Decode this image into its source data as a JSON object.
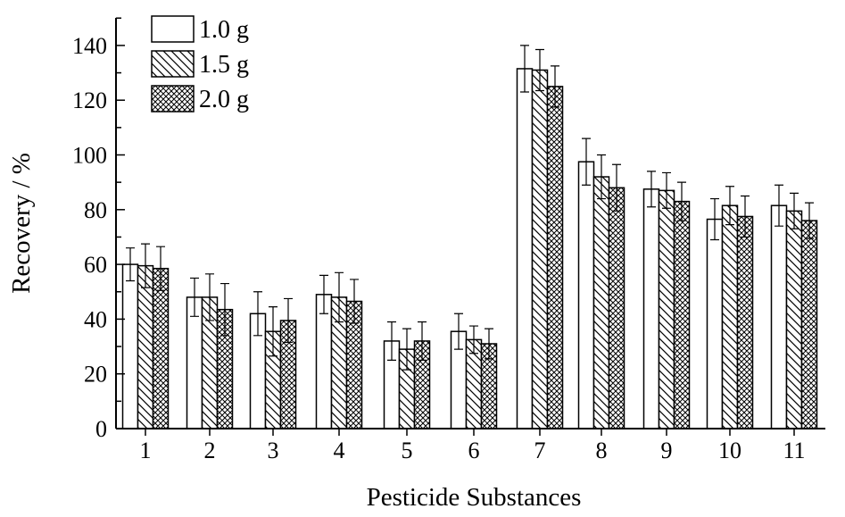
{
  "chart_data": {
    "type": "bar",
    "xlabel": "Pesticide Substances",
    "ylabel": "Recovery / %",
    "ylim": [
      0,
      150
    ],
    "yticks": [
      0,
      20,
      40,
      60,
      80,
      100,
      120,
      140
    ],
    "categories": [
      "1",
      "2",
      "3",
      "4",
      "5",
      "6",
      "7",
      "8",
      "9",
      "10",
      "11"
    ],
    "series": [
      {
        "name": "1.0 g",
        "pattern": "blank",
        "values": [
          60,
          48,
          42,
          49,
          32,
          35.5,
          131.5,
          97.5,
          87.5,
          76.5,
          81.5
        ],
        "errors": [
          6,
          7,
          8,
          7,
          7,
          6.5,
          8.5,
          8.5,
          6.5,
          7.5,
          7.5
        ]
      },
      {
        "name": "1.5 g",
        "pattern": "diagonal-hatch",
        "values": [
          59.5,
          48,
          35.5,
          48,
          29,
          32.5,
          131,
          92,
          87,
          81.5,
          79.5
        ],
        "errors": [
          8,
          8.5,
          9,
          9,
          7.5,
          5,
          7.5,
          8,
          6.5,
          7,
          6.5
        ]
      },
      {
        "name": "2.0 g",
        "pattern": "cross-hatch",
        "values": [
          58.5,
          43.5,
          39.5,
          46.5,
          32,
          31,
          125,
          88,
          83,
          77.5,
          76
        ],
        "errors": [
          8,
          9.5,
          8,
          8,
          7,
          5.5,
          7.5,
          8.5,
          7,
          7.5,
          6.5
        ]
      }
    ],
    "legend_position": "top-left",
    "grid": false,
    "colors": {
      "bar_fill": "#ffffff",
      "ink": "#000000"
    }
  }
}
